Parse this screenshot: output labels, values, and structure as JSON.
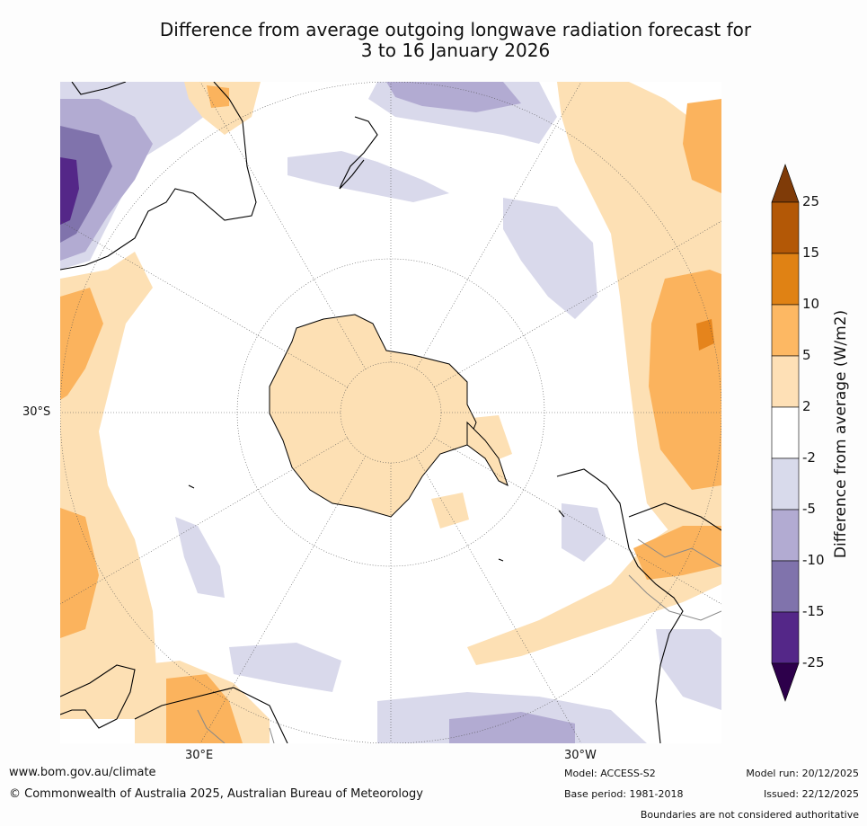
{
  "title": {
    "line1": "Difference from average outgoing longwave radiation forecast for",
    "line2": "3 to 16 January 2026"
  },
  "map": {
    "lat_label": "30°S",
    "lon_labels": {
      "east": "30°E",
      "west": "30°W"
    },
    "colors": {
      "ocean": "#ffffff",
      "pos_2_5": "#fde0b4",
      "pos_5_10": "#fbb35d",
      "pos_10_15": "#e5841c",
      "neg_2_5": "#d9d9eb",
      "neg_5_10": "#b2abd2",
      "neg_10_15": "#8073ac",
      "neg_15_25": "#542788",
      "coast": "#000000",
      "boundary": "#888888",
      "grid": "#555555"
    }
  },
  "colorbar": {
    "label": "Difference from average (W/m2)",
    "ticks": [
      "25",
      "15",
      "10",
      "5",
      "2",
      "-2",
      "-5",
      "-10",
      "-15",
      "-25"
    ],
    "colors": [
      "#b35806",
      "#e08214",
      "#fdb863",
      "#fee0b6",
      "#ffffff",
      "#d8daeb",
      "#b2abd2",
      "#8073ac",
      "#542788"
    ],
    "over_color": "#7f3b08",
    "under_color": "#2d004b"
  },
  "footer": {
    "website": "www.bom.gov.au/climate",
    "copyright": "© Commonwealth of Australia 2025, Australian Bureau of Meteorology",
    "model": "Model: ACCESS-S2",
    "base_period": "Base period: 1981-2018",
    "model_run": "Model run: 20/12/2025",
    "issued": "Issued: 22/12/2025",
    "disclaimer": "Boundaries are not considered authoritative"
  }
}
